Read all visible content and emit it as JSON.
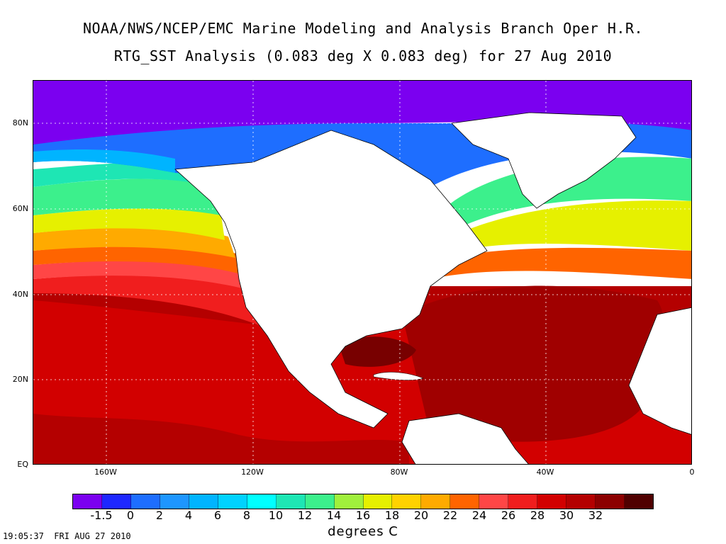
{
  "header": {
    "title_line1": "NOAA/NWS/NCEP/EMC Marine Modeling and Analysis Branch Oper H.R.",
    "title_line2": "RTG_SST Analysis (0.083 deg X 0.083 deg) for 27 Aug 2010"
  },
  "map": {
    "lat_labels": [
      "80N",
      "60N",
      "40N",
      "20N",
      "EQ"
    ],
    "lon_labels": [
      "160W",
      "120W",
      "80W",
      "40W",
      "0"
    ],
    "lat_range": [
      0,
      90
    ],
    "lon_range": [
      -180,
      0
    ],
    "colors": {
      "land": "#ffffff",
      "boundary": "#000000",
      "grid": "#ffffff"
    }
  },
  "legend": {
    "labels": [
      "-1.5",
      "0",
      "2",
      "4",
      "6",
      "8",
      "10",
      "12",
      "14",
      "16",
      "18",
      "20",
      "22",
      "24",
      "26",
      "28",
      "30",
      "32"
    ],
    "colors": [
      "#7b00f0",
      "#1e28ff",
      "#1e6eff",
      "#1e96ff",
      "#00b4ff",
      "#00d2ff",
      "#00ffff",
      "#1ee6b4",
      "#3cf08c",
      "#a0f03c",
      "#e6f000",
      "#ffd200",
      "#ffaa00",
      "#ff6400",
      "#ff4646",
      "#f01e1e",
      "#d20000",
      "#b40000",
      "#8c0000",
      "#500000"
    ],
    "units": "degrees C"
  },
  "footer": {
    "timestamp": "19:05:37  FRI AUG 27 2010"
  }
}
